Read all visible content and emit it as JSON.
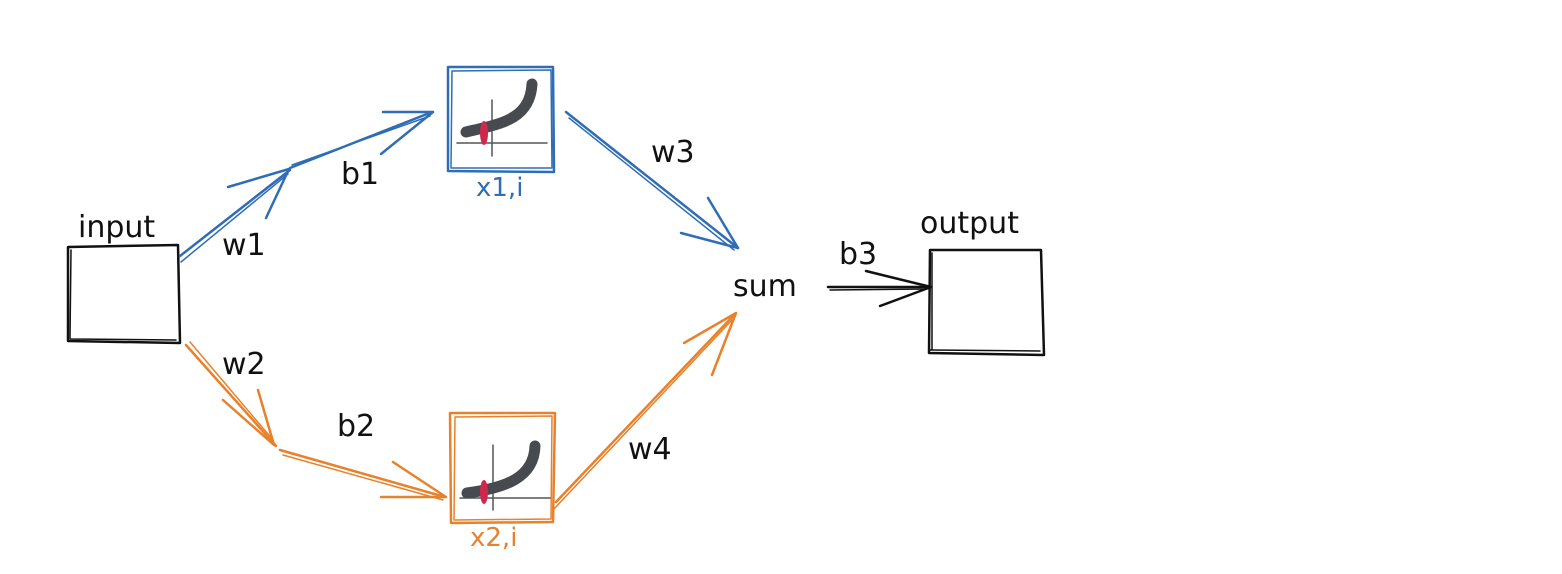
{
  "colors": {
    "ink": "#111111",
    "blue": "#2f6db5",
    "orange": "#e8812b",
    "curve": "#474b50",
    "marker": "#d0284b"
  },
  "nodes": {
    "input": "input",
    "output": "output",
    "sum": "sum",
    "neuron_top": "x1,i",
    "neuron_bottom": "x2,i"
  },
  "weights": {
    "w1": "w1",
    "w2": "w2",
    "w3": "w3",
    "w4": "w4"
  },
  "biases": {
    "b1": "b1",
    "b2": "b2",
    "b3": "b3"
  },
  "icons": {
    "activation": "softplus-curve-icon",
    "marker": "point-marker-icon"
  }
}
